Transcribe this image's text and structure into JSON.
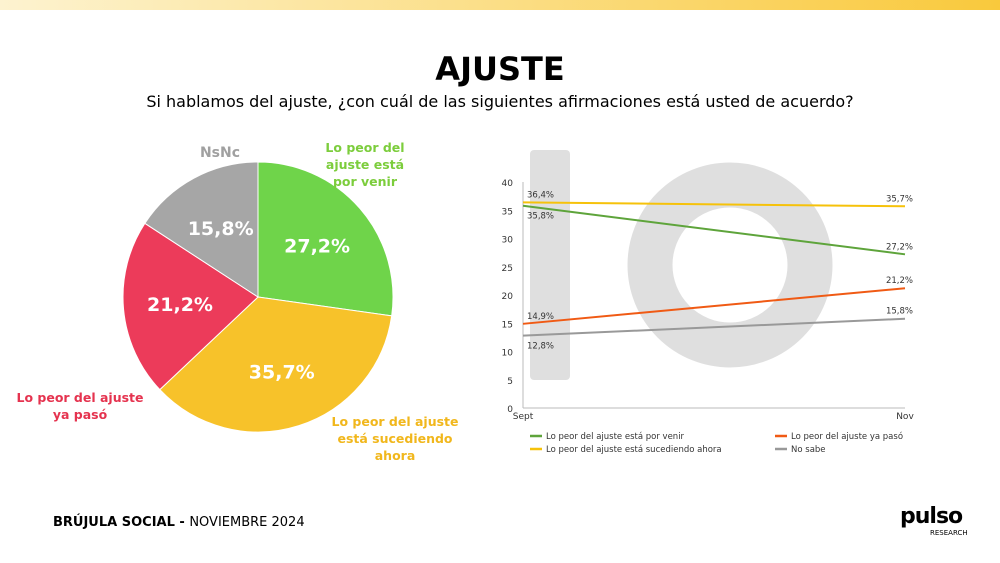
{
  "title": "AJUSTE",
  "subtitle": "Si hablamos del ajuste, ¿con cuál de las siguientes afirmaciones está usted de acuerdo?",
  "footer": {
    "brand": "BRÚJULA SOCIAL - ",
    "period": "NOVIEMBRE 2024"
  },
  "logo": {
    "text": "pulso",
    "sub": "RESEARCH"
  },
  "chart_data": [
    {
      "type": "pie",
      "slices": [
        {
          "name": "Lo peor del ajuste está por venir",
          "value": 27.2,
          "label": "27,2%",
          "color": "#6fd44a"
        },
        {
          "name": "Lo peor del ajuste está sucediendo ahora",
          "value": 35.7,
          "label": "35,7%",
          "color": "#f7c22a"
        },
        {
          "name": "Lo peor del ajuste ya pasó",
          "value": 21.2,
          "label": "21,2%",
          "color": "#ec3b5a"
        },
        {
          "name": "NsNc",
          "value": 15.8,
          "label": "15,8%",
          "color": "#a6a6a6"
        }
      ],
      "label_colors": [
        "#7ccd3c",
        "#f1b71c",
        "#e5334f",
        "#a0a0a0"
      ]
    },
    {
      "type": "line",
      "categories": [
        "Sept",
        "Nov"
      ],
      "ylim": [
        0,
        40
      ],
      "yticks": [
        "0",
        "5",
        "10",
        "15",
        "20",
        "25",
        "30",
        "35",
        "40"
      ],
      "legend": "bottom",
      "series": [
        {
          "name": "Lo peor del ajuste está por venir",
          "values": [
            35.8,
            27.2
          ],
          "labels": [
            "35,8%",
            "27,2%"
          ],
          "color": "#5ea43b"
        },
        {
          "name": "Lo peor del ajuste ya pasó",
          "values": [
            14.9,
            21.2
          ],
          "labels": [
            "14,9%",
            "21,2%"
          ],
          "color": "#f05a14"
        },
        {
          "name": "Lo peor del ajuste está sucediendo ahora",
          "values": [
            36.4,
            35.7
          ],
          "labels": [
            "36,4%",
            "35,7%"
          ],
          "color": "#f6c20a"
        },
        {
          "name": "No sabe",
          "values": [
            12.8,
            15.8
          ],
          "labels": [
            "12,8%",
            "15,8%"
          ],
          "color": "#999999"
        }
      ]
    }
  ]
}
